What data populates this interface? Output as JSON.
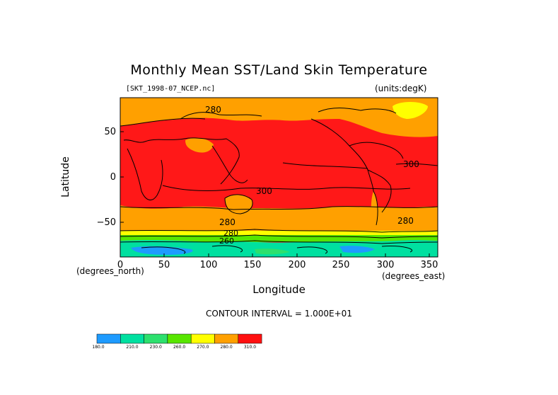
{
  "title": "Monthly Mean SST/Land Skin Temperature",
  "file_label": "[SKT_1998-07_NCEP.nc]",
  "units_label": "(units:degK)",
  "y_axis_label": "Latitude",
  "x_axis_label": "Longitude",
  "lat_units": "(degrees_north)",
  "lon_units": "(degrees_east)",
  "contour_interval_text": "CONTOUR INTERVAL = 1.000E+01",
  "y_ticks": [
    "50",
    "0",
    "−50"
  ],
  "x_ticks": [
    "0",
    "50",
    "100",
    "150",
    "200",
    "250",
    "300",
    "350"
  ],
  "contour_labels": [
    "280",
    "300",
    "300",
    "280",
    "280",
    "280",
    "260"
  ],
  "colorbar": {
    "boundaries": [
      "180.0",
      "210.0",
      "230.0",
      "260.0",
      "270.0",
      "280.0",
      "310.0"
    ],
    "colors": [
      "#1e9bff",
      "#00e0a0",
      "#2de06e",
      "#58e600",
      "#ffff00",
      "#ffa000",
      "#ff1010"
    ]
  },
  "colors": {
    "warm": "#ff1818",
    "mid": "#ffa000",
    "yellow": "#ffff00",
    "green": "#58e600",
    "teal": "#00e0a0",
    "blue": "#1e9bff"
  }
}
